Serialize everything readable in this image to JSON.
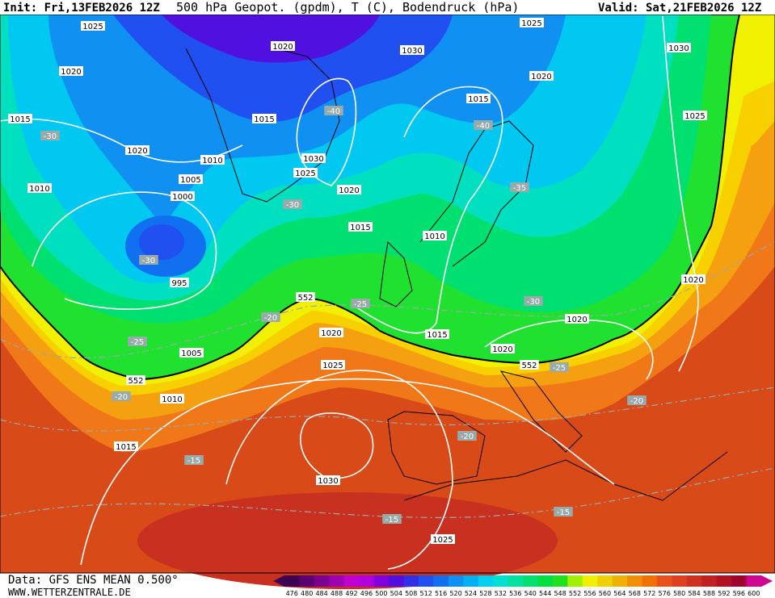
{
  "header": {
    "init": "Init: Fri,13FEB2026 12Z",
    "title": "500 hPa Geopot. (gpdm), T (C), Bodendruck (hPa)",
    "valid": "Valid: Sat,21FEB2026 12Z"
  },
  "footer": {
    "data": "Data: GFS ENS MEAN 0.500°",
    "url": "WWW.WETTERZENTRALE.DE"
  },
  "isobar_labels": [
    "1025",
    "1020",
    "1030",
    "1025",
    "1030",
    "1020",
    "1020",
    "1015",
    "1015",
    "1015",
    "1025",
    "1020",
    "1010",
    "1030",
    "1025",
    "1005",
    "1010",
    "1020",
    "1000",
    "1015",
    "1010",
    "995",
    "1020",
    "1020",
    "1015",
    "1020",
    "1025",
    "1020",
    "1005",
    "1010",
    "1015",
    "1030",
    "1025"
  ],
  "temperature_labels": [
    "-30",
    "-40",
    "-40",
    "-35",
    "-30",
    "-30",
    "-25",
    "-20",
    "-30",
    "-25",
    "-25",
    "-20",
    "-20",
    "-20",
    "-15",
    "-15",
    "-15"
  ],
  "contour_552_labels": [
    "552",
    "552",
    "552"
  ],
  "colorbar": {
    "levels": [
      476,
      480,
      484,
      488,
      492,
      496,
      500,
      504,
      508,
      512,
      516,
      520,
      524,
      528,
      532,
      536,
      540,
      544,
      548,
      552,
      556,
      560,
      564,
      568,
      572,
      576,
      580,
      584,
      588,
      592,
      596,
      600
    ],
    "colors": [
      "#3d0050",
      "#5a0070",
      "#7a0090",
      "#9a00b0",
      "#c000d0",
      "#b000e0",
      "#8000e0",
      "#5010e0",
      "#3030e8",
      "#2050f0",
      "#1070f0",
      "#1090f0",
      "#00b0f0",
      "#00d0f0",
      "#00e0d0",
      "#00e0a0",
      "#00e070",
      "#00e040",
      "#20e020",
      "#a0f000",
      "#f0f000",
      "#f0d000",
      "#f0b000",
      "#f09000",
      "#f07000",
      "#e85020",
      "#e04020",
      "#d03020",
      "#c02020",
      "#b01020",
      "#a00030",
      "#d00090"
    ]
  }
}
